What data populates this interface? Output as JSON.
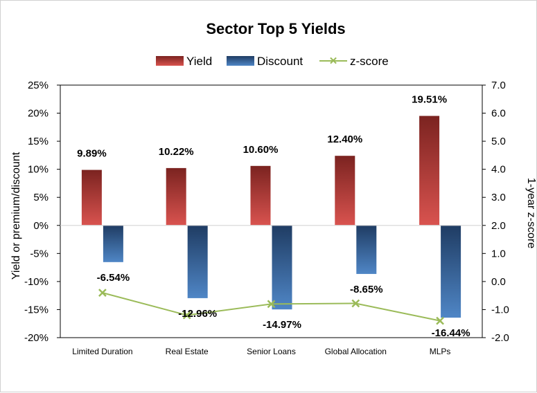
{
  "chart_data": {
    "type": "bar",
    "title": "Sector Top 5 Yields",
    "categories": [
      "Limited Duration",
      "Real Estate",
      "Senior Loans",
      "Global Allocation",
      "MLPs"
    ],
    "series": [
      {
        "name": "Yield",
        "kind": "bar",
        "axis": "left",
        "color": "#c0504d",
        "values": [
          9.89,
          10.22,
          10.6,
          12.4,
          19.51
        ],
        "labels": [
          "9.89%",
          "10.22%",
          "10.60%",
          "12.40%",
          "19.51%"
        ]
      },
      {
        "name": "Discount",
        "kind": "bar",
        "axis": "left",
        "color": "#4f81bd",
        "values": [
          -6.54,
          -12.96,
          -14.97,
          -8.65,
          -16.44
        ],
        "labels": [
          "-6.54%",
          "-12.96%",
          "-14.97%",
          "-8.65%",
          "-16.44%"
        ]
      },
      {
        "name": "z-score",
        "kind": "line",
        "axis": "right",
        "color": "#9bbb59",
        "values": [
          -0.4,
          -1.2,
          -0.8,
          -0.78,
          -1.4
        ]
      }
    ],
    "ylabel": "Yield or premium/discount",
    "y2label": "1-year z-score",
    "ylim": [
      -20,
      25
    ],
    "y2lim": [
      -2.0,
      7.0
    ],
    "yticks": [
      "25%",
      "20%",
      "15%",
      "10%",
      "5%",
      "0%",
      "-5%",
      "-10%",
      "-15%",
      "-20%"
    ],
    "y2ticks": [
      "7.0",
      "6.0",
      "5.0",
      "4.0",
      "3.0",
      "2.0",
      "1.0",
      "0.0",
      "-1.0",
      "-2.0"
    ],
    "legend": "top",
    "grid": false
  }
}
